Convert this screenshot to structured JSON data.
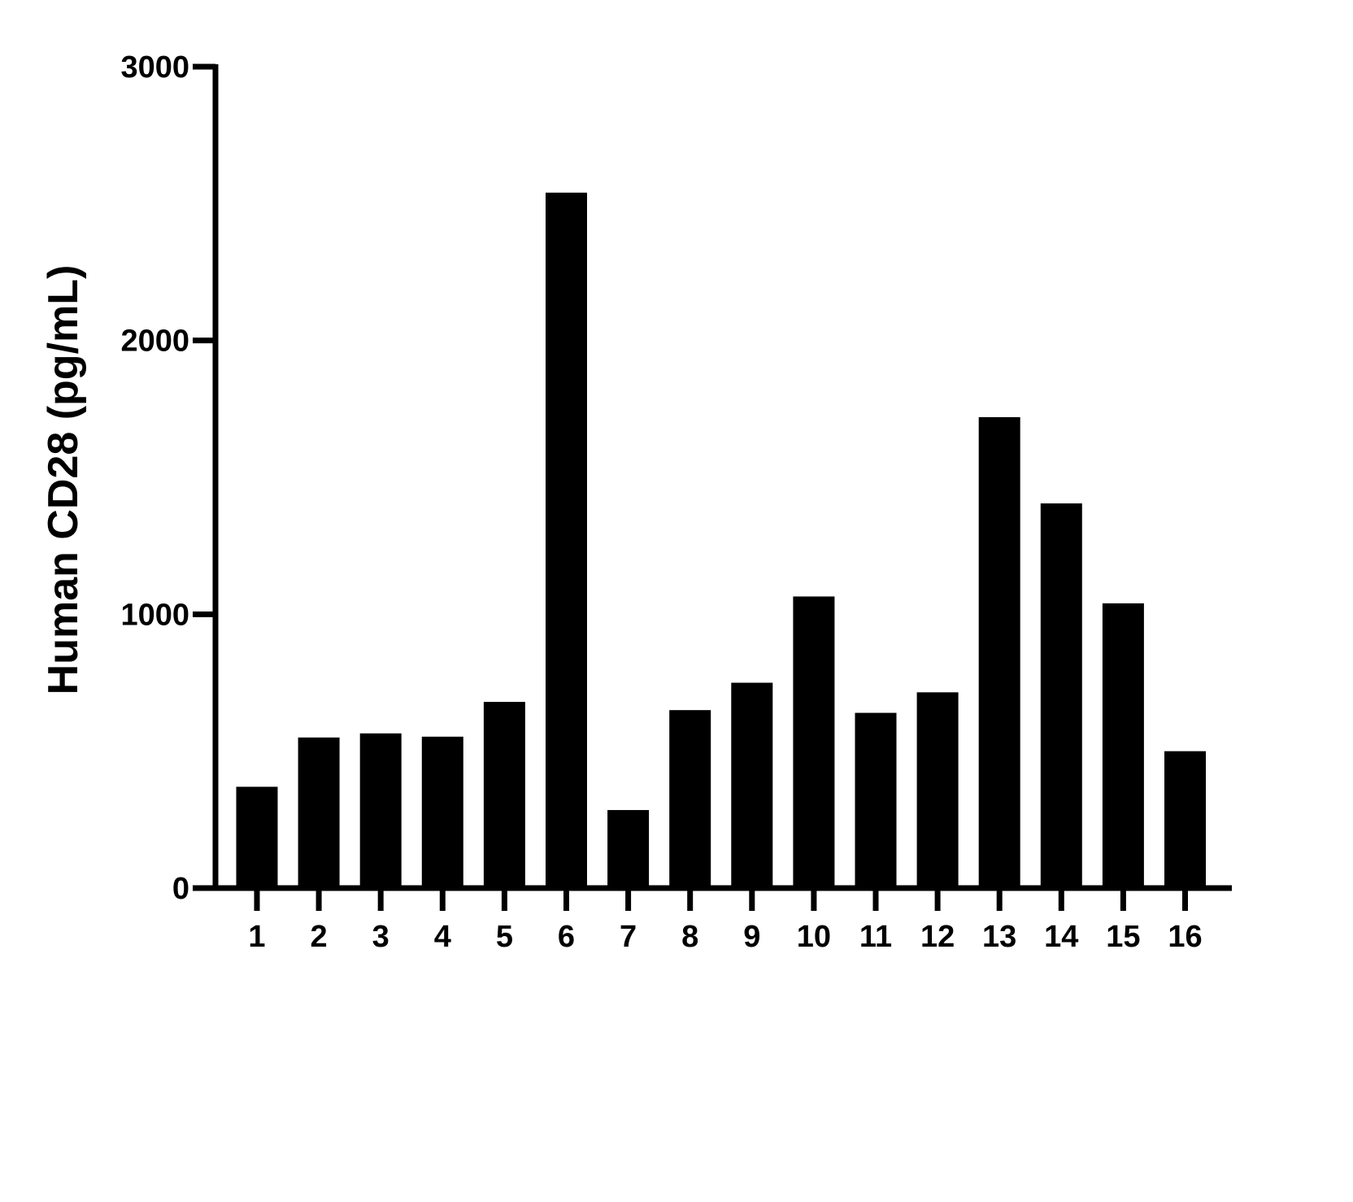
{
  "chart_data": {
    "type": "bar",
    "categories": [
      "1",
      "2",
      "3",
      "4",
      "5",
      "6",
      "7",
      "8",
      "9",
      "10",
      "11",
      "12",
      "13",
      "14",
      "15",
      "16"
    ],
    "values": [
      370,
      550,
      565,
      553,
      680,
      2540,
      285,
      650,
      750,
      1065,
      640,
      715,
      1720,
      1405,
      1040,
      500
    ],
    "title": "",
    "xlabel": "",
    "ylabel": "Human CD28 (pg/mL)",
    "ylim": [
      0,
      3000
    ],
    "yticks": [
      "0",
      "1000",
      "2000",
      "3000"
    ],
    "bar_color": "#000000",
    "grid": false,
    "legend": "none"
  }
}
